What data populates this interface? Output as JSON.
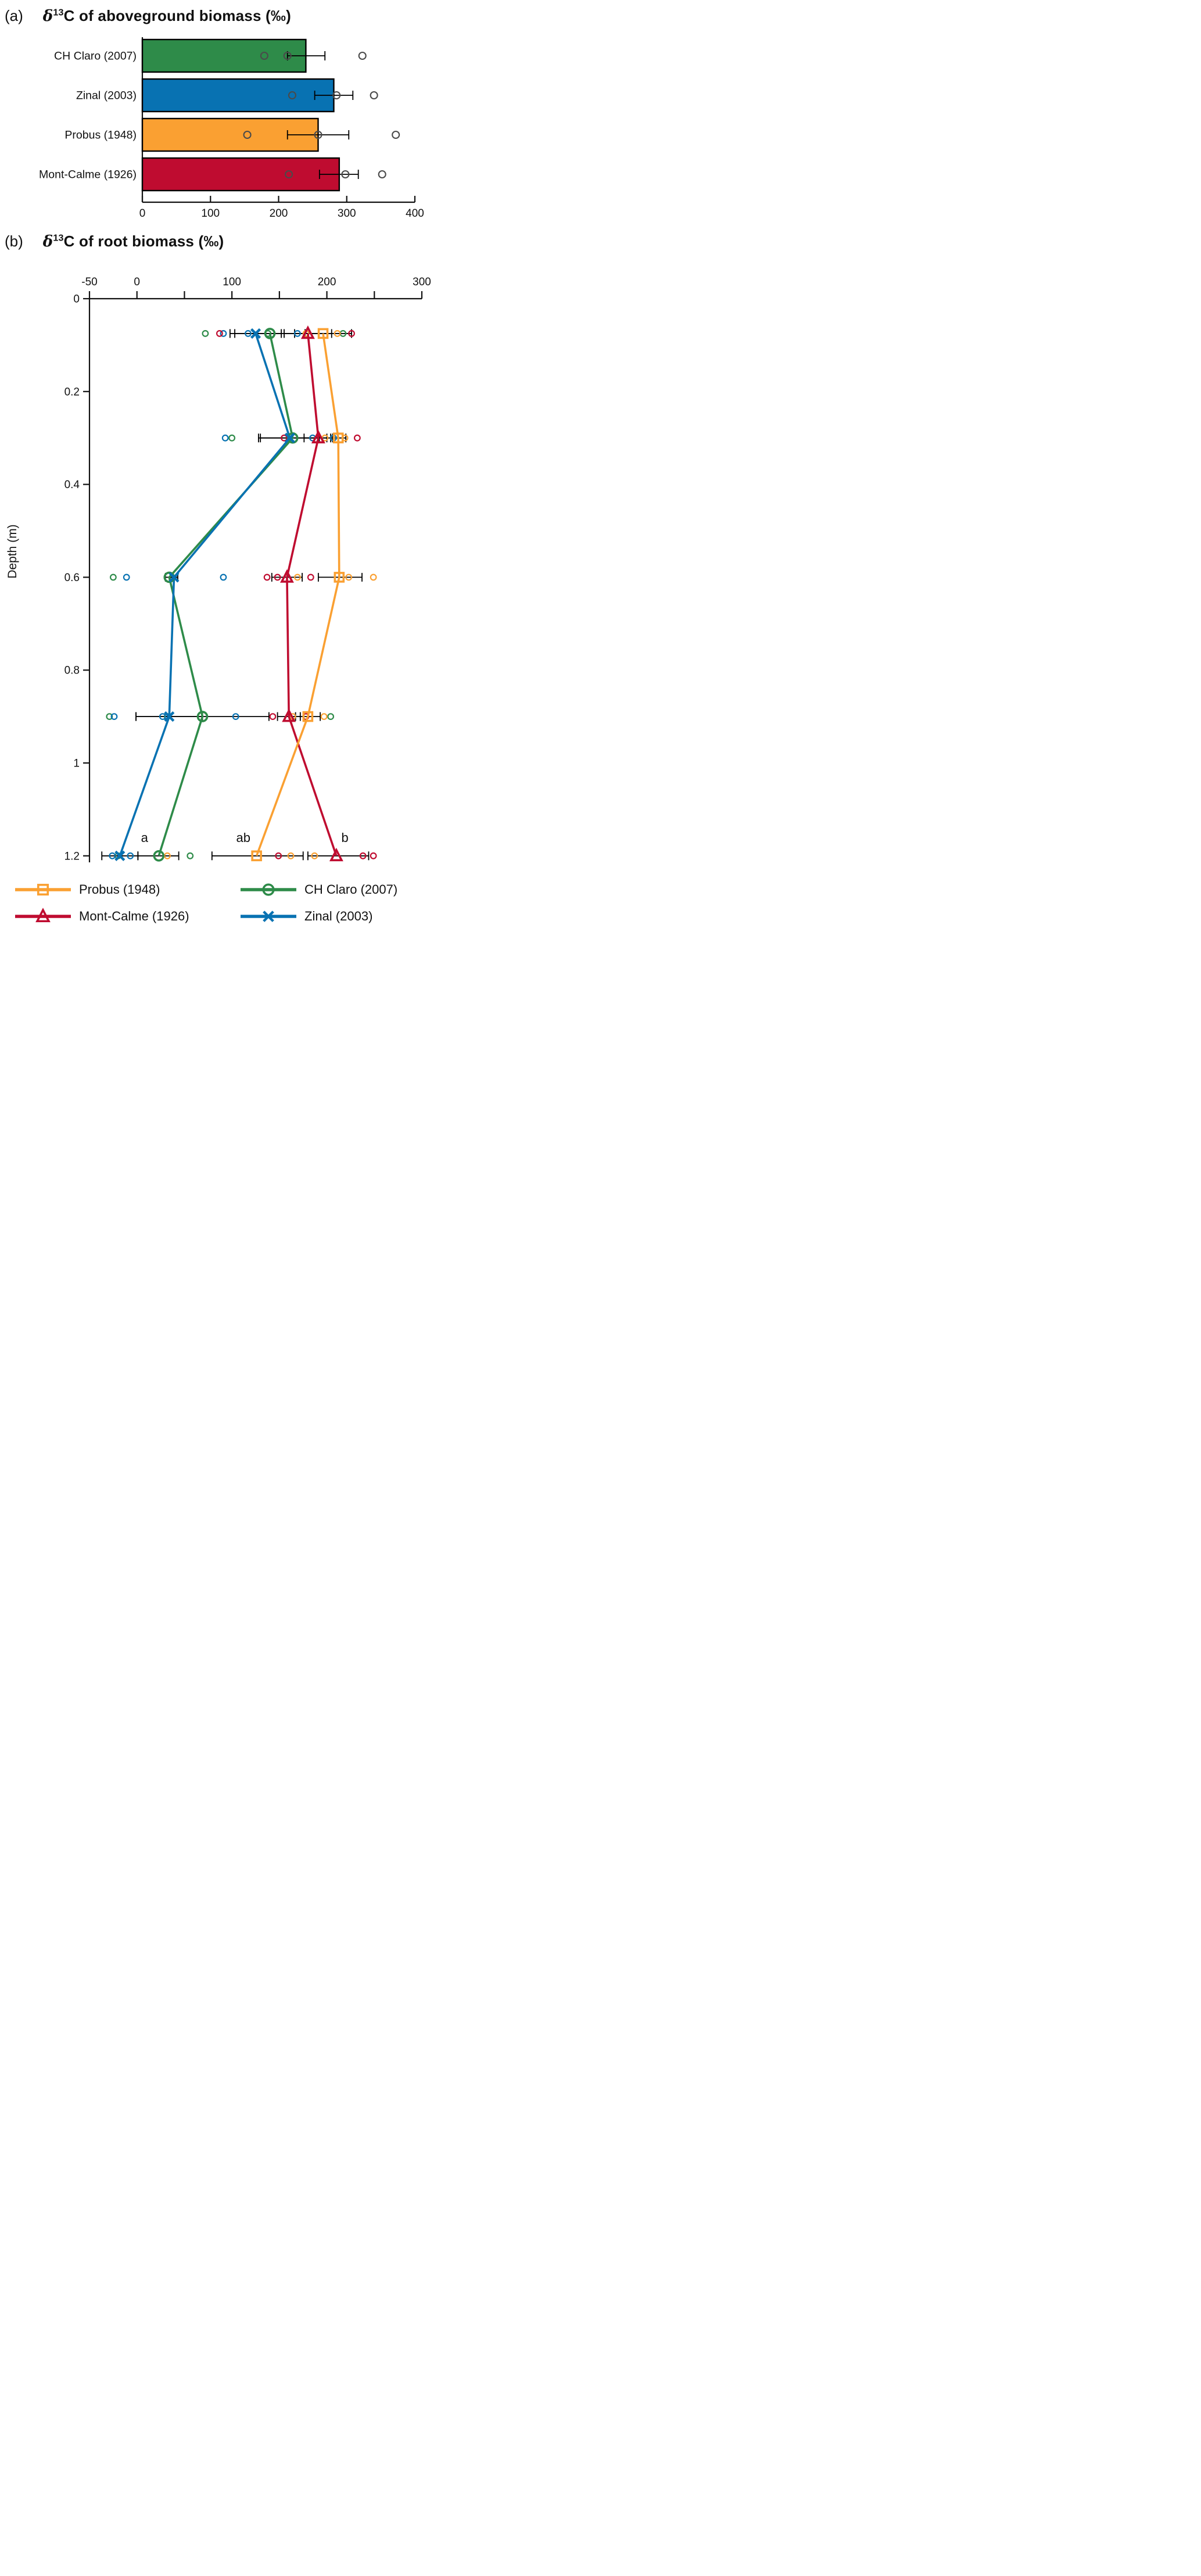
{
  "panel_a": {
    "label": "(a)",
    "delta": "δ",
    "sup": "13",
    "rest": "C of aboveground biomass (‰)"
  },
  "panel_b": {
    "label": "(b)",
    "delta": "δ",
    "sup": "13",
    "rest": "C of root biomass (‰)"
  },
  "legend": {
    "items": [
      {
        "label": "Probus (1948)",
        "color": "#faa032",
        "marker": "square"
      },
      {
        "label": "CH Claro (2007)",
        "color": "#2e8b49",
        "marker": "circle"
      },
      {
        "label": "Mont-Calme (1926)",
        "color": "#bf0c30",
        "marker": "triangle"
      },
      {
        "label": "Zinal (2003)",
        "color": "#0872b2",
        "marker": "x"
      }
    ]
  },
  "chart_data": [
    {
      "type": "bar",
      "orientation": "horizontal",
      "panel": "a",
      "title": "δ13C of aboveground biomass (‰)",
      "categories": [
        "CH Claro (2007)",
        "Zinal (2003)",
        "Probus (1948)",
        "Mont-Calme (1926)"
      ],
      "values": [
        240,
        281,
        258,
        289
      ],
      "error_low": [
        213,
        253,
        213,
        260
      ],
      "error_high": [
        268,
        309,
        303,
        317
      ],
      "points": [
        [
          179,
          213,
          323
        ],
        [
          220,
          285,
          340
        ],
        [
          154,
          258,
          372
        ],
        [
          215,
          298,
          352
        ]
      ],
      "colors": [
        "#2e8b49",
        "#0872b2",
        "#faa032",
        "#bf0c30"
      ],
      "point_color": "#4a4a4a",
      "xlim": [
        0,
        400
      ],
      "xticks": [
        0,
        100,
        200,
        300,
        400
      ],
      "grid": false
    },
    {
      "type": "line",
      "panel": "b",
      "title": "δ13C of root biomass (‰)",
      "x_axis_position": "top",
      "xlim": [
        -50,
        300
      ],
      "xticks_labeled": [
        -50,
        0,
        100,
        200,
        300
      ],
      "xtick_step": 50,
      "ylabel": "Depth (m)",
      "ylim": [
        0,
        1.2
      ],
      "yticks": [
        "0",
        "0.2",
        "0.4",
        "0.6",
        "0.8",
        "1",
        "1.2"
      ],
      "depths": [
        0.075,
        0.3,
        0.6,
        0.9,
        1.2
      ],
      "series": [
        {
          "name": "CH Claro (2007)",
          "marker": "circle",
          "color": "#2e8b49",
          "values": [
            140,
            164,
            34,
            69,
            23
          ],
          "err_low": [
            103,
            128,
            30,
            -1,
            1
          ],
          "err_high": [
            177,
            200,
            38,
            139,
            44
          ],
          "points": [
            [
              72,
              138,
              217
            ],
            [
              100
            ],
            [
              -25
            ],
            [
              -29,
              32,
              204
            ],
            [
              -20,
              56
            ]
          ]
        },
        {
          "name": "Zinal (2003)",
          "marker": "x",
          "color": "#0872b2",
          "values": [
            125,
            161,
            39,
            34,
            -18
          ],
          "err_low": [
            98,
            130,
            35,
            -1,
            -37
          ],
          "err_high": [
            152,
            192,
            43,
            69,
            1
          ],
          "points": [
            [
              91,
              117,
              169
            ],
            [
              93,
              185,
              207
            ],
            [
              -11,
              91
            ],
            [
              -24,
              27,
              104
            ],
            [
              -26,
              -7
            ]
          ]
        },
        {
          "name": "Mont-Calme (1926)",
          "marker": "triangle",
          "color": "#bf0c30",
          "values": [
            180,
            191,
            158,
            160,
            210
          ],
          "err_low": [
            155,
            176,
            142,
            148,
            180
          ],
          "err_high": [
            205,
            206,
            174,
            172,
            244
          ],
          "points": [
            [
              87,
              226
            ],
            [
              155,
              232
            ],
            [
              137,
              148,
              183
            ],
            [
              143,
              178
            ],
            [
              149,
              238,
              249
            ]
          ]
        },
        {
          "name": "Probus (1948)",
          "marker": "square",
          "color": "#faa032",
          "values": [
            196,
            212,
            213,
            180,
            126
          ],
          "err_low": [
            166,
            204,
            191,
            167,
            79
          ],
          "err_high": [
            226,
            220,
            237,
            193,
            175
          ],
          "points": [
            [
              178,
              211
            ],
            [
              198,
              219
            ],
            [
              169,
              223,
              249
            ],
            [
              164,
              197
            ],
            [
              32,
              162,
              187
            ]
          ]
        }
      ],
      "sig_letters": [
        {
          "text": "a",
          "x": 8
        },
        {
          "text": "ab",
          "x": 112
        },
        {
          "text": "b",
          "x": 219
        }
      ],
      "grid": false,
      "legend_position": "bottom"
    }
  ]
}
